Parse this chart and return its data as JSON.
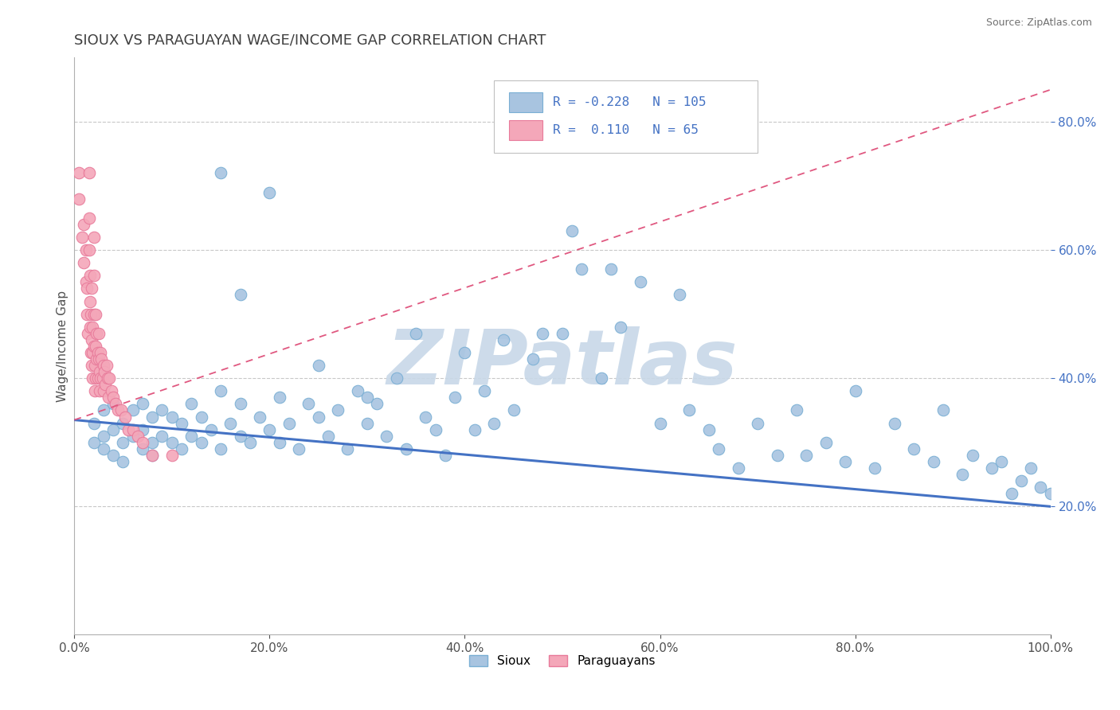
{
  "title": "SIOUX VS PARAGUAYAN WAGE/INCOME GAP CORRELATION CHART",
  "source_text": "Source: ZipAtlas.com",
  "ylabel": "Wage/Income Gap",
  "xlim": [
    0.0,
    1.0
  ],
  "ylim": [
    0.0,
    0.9
  ],
  "xticks": [
    0.0,
    0.2,
    0.4,
    0.6,
    0.8,
    1.0
  ],
  "xtick_labels": [
    "0.0%",
    "20.0%",
    "40.0%",
    "60.0%",
    "80.0%",
    "100.0%"
  ],
  "yticks": [
    0.2,
    0.4,
    0.6,
    0.8
  ],
  "ytick_labels": [
    "20.0%",
    "40.0%",
    "60.0%",
    "80.0%"
  ],
  "sioux_color": "#a8c4e0",
  "paraguayan_color": "#f4a7b9",
  "sioux_edge": "#7aafd4",
  "paraguayan_edge": "#e87a9a",
  "trend_sioux_color": "#4472c4",
  "trend_paraguayan_color": "#e05880",
  "legend_sioux_label": "Sioux",
  "legend_paraguayan_label": "Paraguayans",
  "R_sioux": -0.228,
  "N_sioux": 105,
  "R_paraguayan": 0.11,
  "N_paraguayan": 65,
  "title_color": "#404040",
  "title_fontsize": 13,
  "watermark_text": "ZIPatlas",
  "watermark_color": "#c8d8e8",
  "grid_color": "#c8c8c8",
  "background_color": "#ffffff",
  "sioux_x": [
    0.02,
    0.02,
    0.03,
    0.03,
    0.03,
    0.04,
    0.04,
    0.04,
    0.05,
    0.05,
    0.05,
    0.06,
    0.06,
    0.07,
    0.07,
    0.07,
    0.08,
    0.08,
    0.08,
    0.09,
    0.09,
    0.1,
    0.1,
    0.11,
    0.11,
    0.12,
    0.12,
    0.13,
    0.13,
    0.14,
    0.15,
    0.15,
    0.16,
    0.17,
    0.17,
    0.18,
    0.19,
    0.2,
    0.21,
    0.21,
    0.22,
    0.23,
    0.24,
    0.25,
    0.26,
    0.27,
    0.28,
    0.29,
    0.3,
    0.31,
    0.32,
    0.33,
    0.34,
    0.35,
    0.36,
    0.37,
    0.38,
    0.39,
    0.4,
    0.41,
    0.42,
    0.43,
    0.44,
    0.45,
    0.47,
    0.48,
    0.5,
    0.51,
    0.52,
    0.54,
    0.55,
    0.56,
    0.58,
    0.6,
    0.62,
    0.63,
    0.65,
    0.66,
    0.68,
    0.7,
    0.72,
    0.74,
    0.75,
    0.77,
    0.79,
    0.8,
    0.82,
    0.84,
    0.86,
    0.88,
    0.89,
    0.91,
    0.92,
    0.94,
    0.95,
    0.96,
    0.97,
    0.98,
    0.99,
    1.0,
    0.25,
    0.3,
    0.17,
    0.2,
    0.15
  ],
  "sioux_y": [
    0.33,
    0.3,
    0.31,
    0.29,
    0.35,
    0.32,
    0.28,
    0.36,
    0.3,
    0.33,
    0.27,
    0.31,
    0.35,
    0.29,
    0.32,
    0.36,
    0.3,
    0.34,
    0.28,
    0.31,
    0.35,
    0.3,
    0.34,
    0.29,
    0.33,
    0.31,
    0.36,
    0.3,
    0.34,
    0.32,
    0.29,
    0.38,
    0.33,
    0.31,
    0.36,
    0.3,
    0.34,
    0.32,
    0.3,
    0.37,
    0.33,
    0.29,
    0.36,
    0.34,
    0.31,
    0.35,
    0.29,
    0.38,
    0.33,
    0.36,
    0.31,
    0.4,
    0.29,
    0.47,
    0.34,
    0.32,
    0.28,
    0.37,
    0.44,
    0.32,
    0.38,
    0.33,
    0.46,
    0.35,
    0.43,
    0.47,
    0.47,
    0.63,
    0.57,
    0.4,
    0.57,
    0.48,
    0.55,
    0.33,
    0.53,
    0.35,
    0.32,
    0.29,
    0.26,
    0.33,
    0.28,
    0.35,
    0.28,
    0.3,
    0.27,
    0.38,
    0.26,
    0.33,
    0.29,
    0.27,
    0.35,
    0.25,
    0.28,
    0.26,
    0.27,
    0.22,
    0.24,
    0.26,
    0.23,
    0.22,
    0.42,
    0.37,
    0.53,
    0.69,
    0.72
  ],
  "paraguayan_x": [
    0.005,
    0.005,
    0.008,
    0.01,
    0.01,
    0.012,
    0.012,
    0.013,
    0.013,
    0.014,
    0.015,
    0.015,
    0.015,
    0.016,
    0.016,
    0.016,
    0.017,
    0.017,
    0.018,
    0.018,
    0.018,
    0.019,
    0.019,
    0.019,
    0.02,
    0.02,
    0.02,
    0.02,
    0.021,
    0.021,
    0.022,
    0.022,
    0.022,
    0.023,
    0.023,
    0.024,
    0.024,
    0.025,
    0.025,
    0.026,
    0.026,
    0.027,
    0.027,
    0.028,
    0.029,
    0.03,
    0.03,
    0.031,
    0.032,
    0.033,
    0.034,
    0.035,
    0.036,
    0.038,
    0.04,
    0.042,
    0.045,
    0.048,
    0.052,
    0.055,
    0.06,
    0.065,
    0.07,
    0.08,
    0.1
  ],
  "paraguayan_y": [
    0.68,
    0.72,
    0.62,
    0.58,
    0.64,
    0.55,
    0.6,
    0.5,
    0.54,
    0.47,
    0.72,
    0.65,
    0.6,
    0.52,
    0.56,
    0.48,
    0.44,
    0.5,
    0.46,
    0.42,
    0.54,
    0.4,
    0.44,
    0.48,
    0.62,
    0.56,
    0.5,
    0.45,
    0.42,
    0.38,
    0.5,
    0.45,
    0.4,
    0.47,
    0.43,
    0.44,
    0.4,
    0.47,
    0.43,
    0.41,
    0.38,
    0.44,
    0.4,
    0.43,
    0.4,
    0.42,
    0.38,
    0.41,
    0.39,
    0.42,
    0.4,
    0.37,
    0.4,
    0.38,
    0.37,
    0.36,
    0.35,
    0.35,
    0.34,
    0.32,
    0.32,
    0.31,
    0.3,
    0.28,
    0.28
  ]
}
